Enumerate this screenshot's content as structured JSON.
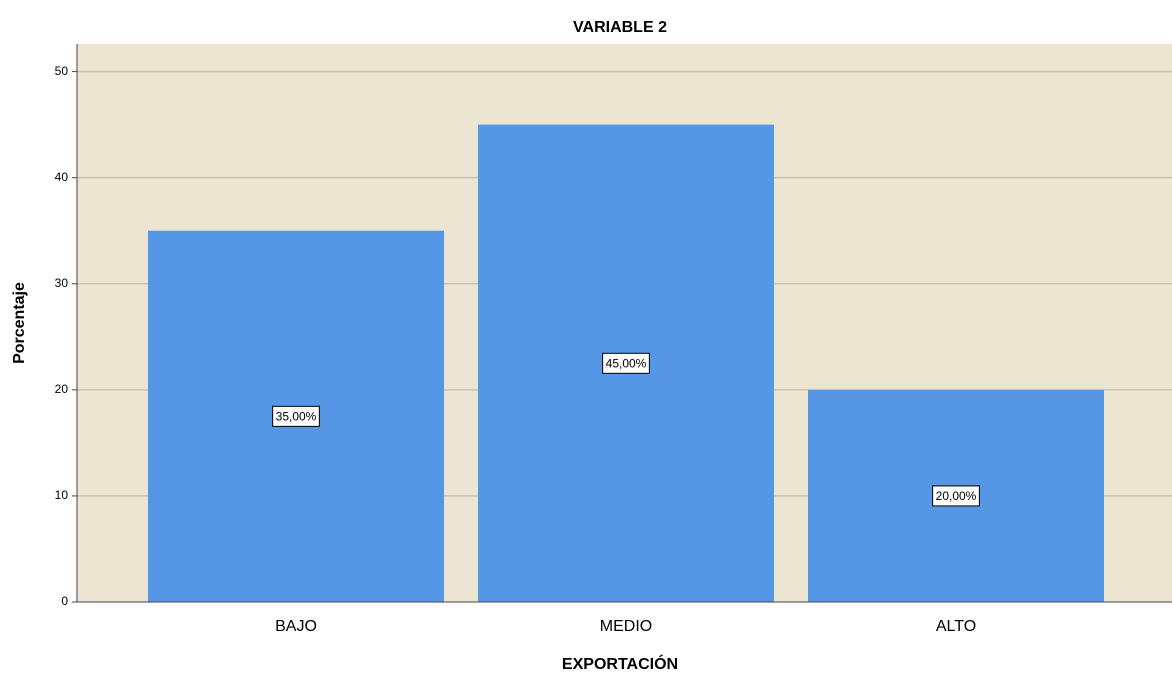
{
  "chart_data": {
    "type": "bar",
    "title": "VARIABLE 2",
    "x_label": "EXPORTACIÓN",
    "y_label": "Porcentaje",
    "categories": [
      "BAJO",
      "MEDIO",
      "ALTO"
    ],
    "values": [
      35,
      45,
      20
    ],
    "value_labels": [
      "35,00%",
      "45,00%",
      "20,00%"
    ],
    "color": "#5596e5",
    "ylim": [
      0,
      52.6
    ],
    "yticks": [
      0,
      10,
      20,
      30,
      40,
      50
    ],
    "grid": true
  }
}
